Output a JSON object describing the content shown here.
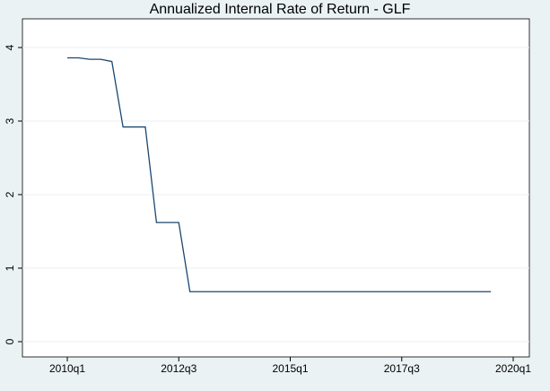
{
  "chart_data": {
    "type": "line",
    "title": "Annualized Internal Rate of Return - GLF",
    "x": [
      200,
      201,
      202,
      203,
      204,
      205,
      206,
      207,
      208,
      209,
      210,
      211,
      212,
      213,
      214,
      215,
      216,
      217,
      218,
      219,
      220,
      221,
      222,
      223,
      224,
      225,
      226,
      227,
      228,
      229,
      230,
      231,
      232,
      233,
      234,
      235,
      236,
      237,
      238
    ],
    "series": [
      {
        "name": "GLF",
        "color": "#1a476f",
        "values": [
          3.86,
          3.86,
          3.84,
          3.84,
          3.81,
          2.92,
          2.92,
          2.92,
          1.62,
          1.62,
          1.62,
          0.68,
          0.68,
          0.68,
          0.68,
          0.68,
          0.68,
          0.68,
          0.68,
          0.68,
          0.68,
          0.68,
          0.68,
          0.68,
          0.68,
          0.68,
          0.68,
          0.68,
          0.68,
          0.68,
          0.68,
          0.68,
          0.68,
          0.68,
          0.68,
          0.68,
          0.68,
          0.68,
          0.68
        ]
      }
    ],
    "xlim": [
      200,
      240
    ],
    "xticks": [
      {
        "value": 200,
        "label": "2010q1"
      },
      {
        "value": 210,
        "label": "2012q3"
      },
      {
        "value": 220,
        "label": "2015q1"
      },
      {
        "value": 230,
        "label": "2017q3"
      },
      {
        "value": 240,
        "label": "2020q1"
      }
    ],
    "ylim": [
      0,
      4
    ],
    "yticks": [
      0,
      1,
      2,
      3,
      4
    ],
    "grid": true
  }
}
